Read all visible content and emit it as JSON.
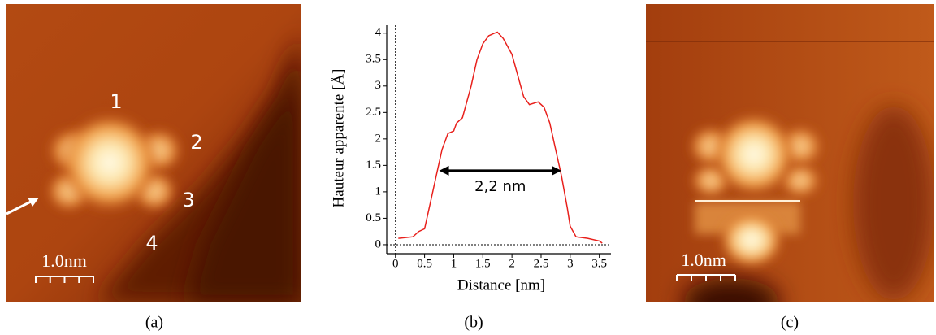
{
  "panels": [
    {
      "caption": "(a)",
      "labels": [
        "1",
        "2",
        "3",
        "4"
      ],
      "scale_bar": "1.0nm"
    },
    {
      "caption": "(b)"
    },
    {
      "caption": "(c)",
      "scale_bar": "1.0nm"
    }
  ],
  "chart_data": {
    "type": "line",
    "x_label": "Distance [nm]",
    "y_label": "Hauteur apparente [Å]",
    "x": [
      0.05,
      0.3,
      0.4,
      0.5,
      0.6,
      0.7,
      0.8,
      0.9,
      1.0,
      1.05,
      1.15,
      1.3,
      1.4,
      1.5,
      1.6,
      1.7,
      1.75,
      1.85,
      2.0,
      2.1,
      2.2,
      2.3,
      2.45,
      2.55,
      2.65,
      2.75,
      2.85,
      2.95,
      3.0,
      3.1,
      3.3,
      3.5,
      3.55
    ],
    "values": [
      0.12,
      0.15,
      0.25,
      0.3,
      0.8,
      1.3,
      1.8,
      2.1,
      2.15,
      2.3,
      2.4,
      3.0,
      3.5,
      3.8,
      3.95,
      4.0,
      4.02,
      3.9,
      3.6,
      3.2,
      2.8,
      2.65,
      2.7,
      2.6,
      2.3,
      1.8,
      1.3,
      0.7,
      0.35,
      0.15,
      0.12,
      0.07,
      0.03
    ],
    "color": "#e8201c",
    "xlim": [
      -0.15,
      3.7
    ],
    "ylim": [
      -0.17,
      4.15
    ],
    "xticks": [
      0,
      0.5,
      1,
      1.5,
      2,
      2.5,
      3,
      3.5
    ],
    "yticks": [
      0,
      0.5,
      1,
      1.5,
      2,
      2.5,
      3,
      3.5,
      4
    ],
    "annotation": {
      "text": "2,2 nm",
      "x": [
        0.75,
        2.85
      ],
      "y": 1.4
    }
  }
}
